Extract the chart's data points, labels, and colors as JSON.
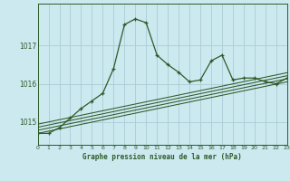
{
  "title": "Graphe pression niveau de la mer (hPa)",
  "bg_color": "#cce9f0",
  "grid_color": "#aaccd5",
  "line_color": "#2d5a27",
  "x_min": 0,
  "x_max": 23,
  "y_min": 1014.4,
  "y_max": 1018.1,
  "yticks": [
    1015,
    1016,
    1017
  ],
  "xticks": [
    0,
    1,
    2,
    3,
    4,
    5,
    6,
    7,
    8,
    9,
    10,
    11,
    12,
    13,
    14,
    15,
    16,
    17,
    18,
    19,
    20,
    21,
    22,
    23
  ],
  "main_x": [
    0,
    1,
    2,
    3,
    4,
    5,
    6,
    7,
    8,
    9,
    10,
    11,
    12,
    13,
    14,
    15,
    16,
    17,
    18,
    19,
    20,
    21,
    22,
    23
  ],
  "main_y": [
    1014.7,
    1014.7,
    1014.85,
    1015.1,
    1015.35,
    1015.55,
    1015.75,
    1016.4,
    1017.55,
    1017.7,
    1017.6,
    1016.75,
    1016.5,
    1016.3,
    1016.05,
    1016.1,
    1016.6,
    1016.75,
    1016.1,
    1016.15,
    1016.15,
    1016.05,
    1016.0,
    1016.15
  ],
  "trend_lines": [
    {
      "x": [
        0,
        23
      ],
      "y": [
        1014.7,
        1016.05
      ]
    },
    {
      "x": [
        0,
        23
      ],
      "y": [
        1014.78,
        1016.13
      ]
    },
    {
      "x": [
        0,
        23
      ],
      "y": [
        1014.86,
        1016.21
      ]
    },
    {
      "x": [
        0,
        23
      ],
      "y": [
        1014.94,
        1016.29
      ]
    }
  ]
}
